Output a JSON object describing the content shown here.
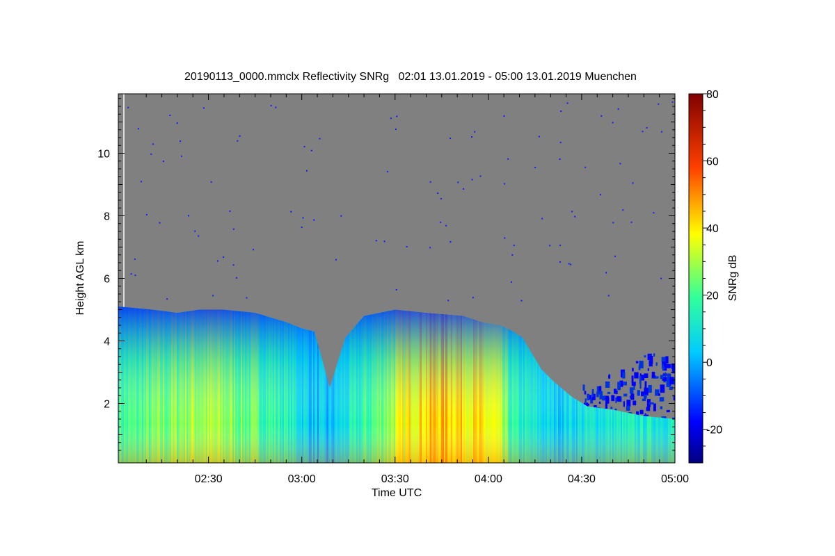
{
  "chart_data": {
    "type": "heatmap",
    "title": "20190113_0000.mmclx Reflectivity SNRg   02:01 13.01.2019 - 05:00 13.01.2019 Muenchen",
    "xlabel": "Time UTC",
    "ylabel": "Height AGL km",
    "colorbar_label": "SNRg dB",
    "x_ticks": [
      "02:30",
      "03:00",
      "03:30",
      "04:00",
      "04:30",
      "05:00"
    ],
    "x_tick_minutes": [
      30,
      60,
      90,
      120,
      150,
      180
    ],
    "xlim_minutes": [
      1,
      180
    ],
    "y_ticks": [
      2,
      4,
      6,
      8,
      10
    ],
    "ylim": [
      0.1,
      11.9
    ],
    "colorbar_ticks": [
      -20,
      0,
      20,
      40,
      60,
      80
    ],
    "colorbar_range": [
      -30,
      80
    ],
    "missing_color": "#808080",
    "echo_top_km": [
      [
        1,
        5.1
      ],
      [
        12,
        5.0
      ],
      [
        20,
        4.9
      ],
      [
        27,
        5.0
      ],
      [
        35,
        5.0
      ],
      [
        45,
        4.9
      ],
      [
        55,
        4.6
      ],
      [
        60,
        4.4
      ],
      [
        64,
        4.3
      ],
      [
        66,
        3.6
      ],
      [
        69,
        2.5
      ],
      [
        74,
        4.1
      ],
      [
        80,
        4.8
      ],
      [
        90,
        5.0
      ],
      [
        100,
        4.9
      ],
      [
        112,
        4.8
      ],
      [
        118,
        4.6
      ],
      [
        124,
        4.5
      ],
      [
        128,
        4.3
      ],
      [
        131,
        4.1
      ],
      [
        134,
        3.6
      ],
      [
        137,
        3.1
      ],
      [
        141,
        2.7
      ],
      [
        147,
        2.2
      ],
      [
        152,
        1.9
      ],
      [
        160,
        1.8
      ],
      [
        170,
        1.6
      ],
      [
        180,
        1.5
      ]
    ],
    "scattered_echo_top_km": [
      [
        150,
        2.6
      ],
      [
        160,
        3.0
      ],
      [
        168,
        3.5
      ],
      [
        175,
        3.8
      ],
      [
        180,
        3.4
      ]
    ],
    "mean_snr_db_by_time": [
      [
        5,
        20
      ],
      [
        15,
        25
      ],
      [
        25,
        30
      ],
      [
        35,
        28
      ],
      [
        45,
        22
      ],
      [
        55,
        15
      ],
      [
        62,
        5
      ],
      [
        68,
        0
      ],
      [
        75,
        10
      ],
      [
        85,
        25
      ],
      [
        95,
        40
      ],
      [
        105,
        45
      ],
      [
        115,
        40
      ],
      [
        122,
        35
      ],
      [
        128,
        15
      ],
      [
        140,
        5
      ],
      [
        155,
        10
      ],
      [
        170,
        12
      ],
      [
        180,
        12
      ]
    ]
  }
}
